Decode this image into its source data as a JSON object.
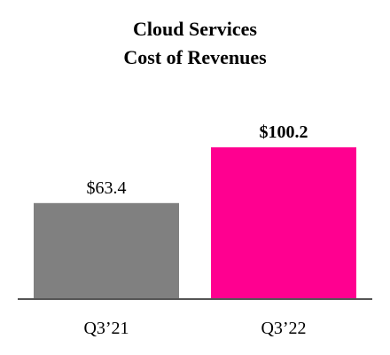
{
  "chart_data": {
    "type": "bar",
    "title": [
      "Cloud Services",
      "Cost of Revenues"
    ],
    "categories": [
      "Q3’21",
      "Q3’22"
    ],
    "values": [
      63.4,
      100.2
    ],
    "data_labels": [
      "$63.4",
      "$100.2"
    ],
    "data_label_bold": [
      false,
      true
    ],
    "colors": [
      "#808080",
      "#ff0090"
    ],
    "axis_color": "#555555",
    "ylim": [
      0,
      100.2
    ],
    "grid": false,
    "legend": "none"
  }
}
